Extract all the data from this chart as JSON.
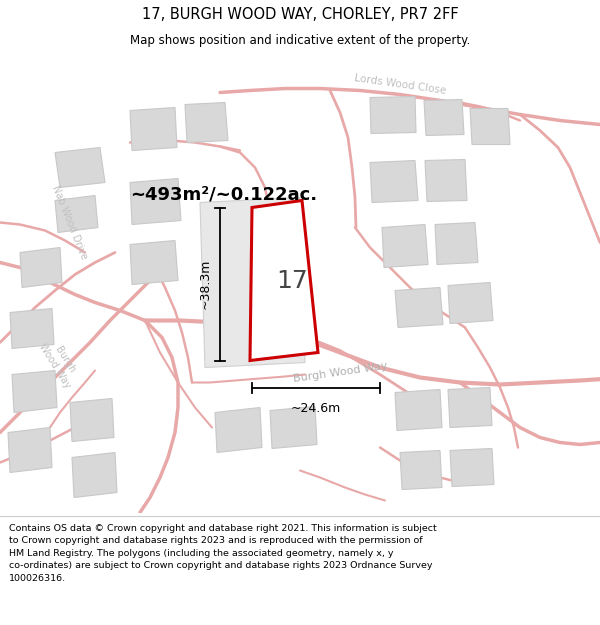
{
  "title": "17, BURGH WOOD WAY, CHORLEY, PR7 2FF",
  "subtitle": "Map shows position and indicative extent of the property.",
  "footer_lines": [
    "Contains OS data © Crown copyright and database right 2021. This information is subject to Crown copyright and database rights 2023 and is reproduced with the permission of",
    "HM Land Registry. The polygons (including the associated geometry, namely x, y co-ordinates) are subject to Crown copyright and database rights 2023 Ordnance Survey",
    "100026316."
  ],
  "area_text": "~493m²/~0.122ac.",
  "width_text": "~24.6m",
  "height_text": "~38.3m",
  "property_number": "17",
  "map_bg": "#f2f2f2",
  "road_color": "#e8a8a8",
  "block_color": "#d8d8d8",
  "block_edge_color": "#c8c8c8",
  "property_fill": "#ffffff",
  "property_edge": "#cc0000",
  "road_text_color": "#c0c0c0",
  "title_color": "#000000",
  "footer_color": "#000000",
  "dim_color": "#000000",
  "white": "#ffffff"
}
